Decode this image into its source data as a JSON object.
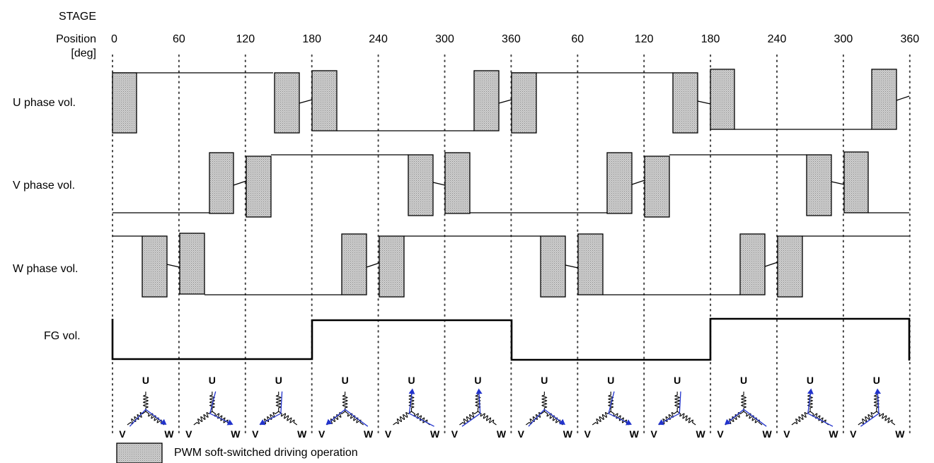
{
  "labels": {
    "stage": "STAGE",
    "position_line1": "Position",
    "position_line2": "[deg]",
    "u_phase": "U phase vol.",
    "v_phase": "V phase vol.",
    "w_phase": "W phase vol.",
    "fg": "FG vol.",
    "legend": "PWM soft-switched driving operation"
  },
  "position_ticks": [
    "0",
    "60",
    "120",
    "180",
    "240",
    "300",
    "360",
    "60",
    "120",
    "180",
    "240",
    "300",
    "360"
  ],
  "coil_labels": {
    "u": "U",
    "v": "V",
    "w": "W"
  },
  "colors": {
    "line": "#000000",
    "pwm_fill": "#c8c8c8",
    "gridline": "#444444",
    "current_arrow": "#2233cc"
  },
  "stages": [
    {
      "from": "V",
      "to": "W"
    },
    {
      "from": "U",
      "to": "W"
    },
    {
      "from": "U",
      "to": "V"
    },
    {
      "from": "W",
      "to": "V"
    },
    {
      "from": "W",
      "to": "U"
    },
    {
      "from": "V",
      "to": "U"
    },
    {
      "from": "V",
      "to": "W"
    },
    {
      "from": "U",
      "to": "W"
    },
    {
      "from": "U",
      "to": "V"
    },
    {
      "from": "W",
      "to": "V"
    },
    {
      "from": "W",
      "to": "U"
    },
    {
      "from": "V",
      "to": "U"
    }
  ]
}
